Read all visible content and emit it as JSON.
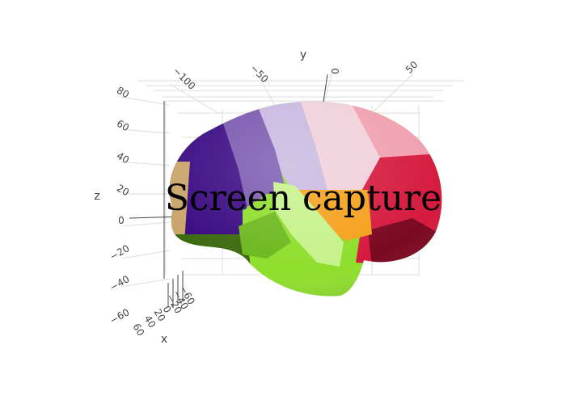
{
  "chart_data": {
    "type": "3d-surface",
    "title": "",
    "axes": {
      "x": {
        "label": "x",
        "ticks": [
          "60",
          "40",
          "20",
          "0",
          "−20",
          "−40",
          "−60"
        ]
      },
      "y": {
        "label": "y",
        "ticks": [
          "−100",
          "−50",
          "0",
          "50"
        ]
      },
      "z": {
        "label": "z",
        "ticks": [
          "80",
          "60",
          "40",
          "20",
          "0",
          "−20",
          "−40",
          "−60"
        ]
      }
    },
    "grid": true,
    "regions": [
      {
        "name": "occipital-tan",
        "color": "#c9a56a"
      },
      {
        "name": "parietal-indigo",
        "color": "#3a0a82"
      },
      {
        "name": "parietal-purple",
        "color": "#7a58b0"
      },
      {
        "name": "superior-lavender",
        "color": "#c8b8e0"
      },
      {
        "name": "central-lightpink",
        "color": "#f0d0da"
      },
      {
        "name": "frontal-pink",
        "color": "#f0a0b0"
      },
      {
        "name": "frontal-red",
        "color": "#d51a3e"
      },
      {
        "name": "orbitofrontal-darkred",
        "color": "#7a0820"
      },
      {
        "name": "insula-orange",
        "color": "#f5a11c"
      },
      {
        "name": "temporal-green",
        "color": "#8ede2c"
      },
      {
        "name": "temporal-darkgreen",
        "color": "#3c6a10"
      }
    ]
  },
  "overlay_text": "Screen capture"
}
